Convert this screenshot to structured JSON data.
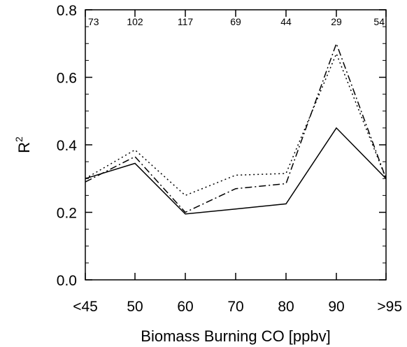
{
  "chart_data": {
    "type": "line",
    "title": "",
    "xlabel": "Biomass Burning CO [ppbv]",
    "ylabel": "R",
    "ylabel_superscript": "2",
    "categories": [
      "<45",
      "50",
      "60",
      "70",
      "80",
      "90",
      ">95"
    ],
    "sample_counts": [
      "73",
      "102",
      "117",
      "69",
      "44",
      "29",
      "54"
    ],
    "ylim": [
      0.0,
      0.8
    ],
    "yticks": [
      "0.0",
      "0.2",
      "0.4",
      "0.6",
      "0.8"
    ],
    "grid": false,
    "legend": "none",
    "series": [
      {
        "style": "solid",
        "values": [
          0.3,
          0.345,
          0.195,
          0.21,
          0.225,
          0.45,
          0.3
        ]
      },
      {
        "style": "dotted",
        "values": [
          0.3,
          0.385,
          0.25,
          0.31,
          0.315,
          0.67,
          0.3
        ]
      },
      {
        "style": "dash-dot",
        "values": [
          0.29,
          0.365,
          0.2,
          0.27,
          0.285,
          0.7,
          0.3
        ]
      }
    ],
    "colors": {
      "line": "#000000",
      "axis": "#000000"
    }
  }
}
